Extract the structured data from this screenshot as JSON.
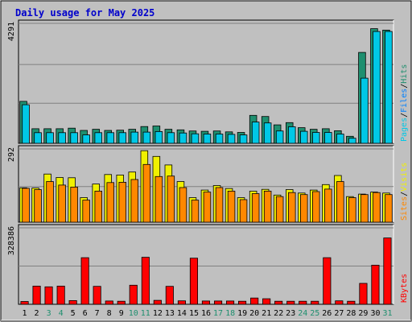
{
  "chart_data": {
    "type": "bar",
    "title": "Daily usage for May 2025",
    "categories": [
      "1",
      "2",
      "3",
      "4",
      "5",
      "6",
      "7",
      "8",
      "9",
      "10",
      "11",
      "12",
      "13",
      "14",
      "15",
      "16",
      "17",
      "18",
      "19",
      "20",
      "21",
      "22",
      "23",
      "24",
      "25",
      "26",
      "27",
      "28",
      "29",
      "30",
      "31"
    ],
    "weekend_days": [
      3,
      4,
      10,
      11,
      17,
      18,
      24,
      25,
      31
    ],
    "colors": {
      "hits": "#1f8f6f",
      "files": "#00c8e6",
      "pages": "#00c8e6",
      "visits": "#f0f000",
      "sites": "#ff8800",
      "kbytes": "#ff0000",
      "plot_background": "#c0c0c0",
      "title": "#0000cc",
      "weekend_label": "#1f8f6f",
      "weekday_label": "#000000"
    },
    "panels": [
      {
        "id": "hits",
        "axis_max_label": "4291",
        "ymax": 4291,
        "legend": [
          {
            "text": "Pages",
            "color": "#00c8e6"
          },
          {
            "text": "/",
            "color": "#000000"
          },
          {
            "text": "Files",
            "color": "#0080ff"
          },
          {
            "text": "/",
            "color": "#000000"
          },
          {
            "text": "Hits",
            "color": "#1f8f6f"
          }
        ],
        "series": [
          {
            "name": "Hits",
            "values": [
              1500,
              520,
              520,
              520,
              540,
              460,
              500,
              460,
              470,
              500,
              600,
              620,
              500,
              480,
              440,
              430,
              440,
              410,
              390,
              1000,
              960,
              660,
              740,
              560,
              500,
              520,
              450,
              250,
              3250,
              4100,
              4050
            ]
          },
          {
            "name": "Files",
            "values": [
              1380,
              380,
              380,
              380,
              380,
              300,
              380,
              380,
              380,
              400,
              400,
              420,
              380,
              370,
              340,
              330,
              330,
              320,
              300,
              760,
              730,
              440,
              590,
              430,
              390,
              390,
              330,
              180,
              2330,
              4000,
              4000
            ]
          }
        ]
      },
      {
        "id": "visits",
        "axis_max_label": "292",
        "ymax": 292,
        "legend": [
          {
            "text": "Sites",
            "color": "#ff8800"
          },
          {
            "text": "/",
            "color": "#000000"
          },
          {
            "text": "Visits",
            "color": "#f0f000"
          }
        ],
        "series": [
          {
            "name": "Visits",
            "values": [
              137,
              136,
              192,
              178,
              177,
              98,
              152,
              190,
              188,
              200,
              285,
              262,
              228,
              162,
              98,
              128,
              146,
              134,
              98,
              124,
              131,
              108,
              130,
              116,
              128,
              150,
              186,
              102,
              112,
              120,
              116
            ]
          },
          {
            "name": "Sites",
            "values": [
              135,
              130,
              162,
              148,
              140,
              88,
              124,
              158,
              159,
              170,
              230,
              182,
              184,
              138,
              88,
              120,
              138,
              124,
              90,
              114,
              124,
              102,
              118,
              110,
              122,
              132,
              162,
              98,
              110,
              118,
              110
            ]
          }
        ]
      },
      {
        "id": "kbytes",
        "axis_max_label": "328386",
        "ymax": 328386,
        "legend": [
          {
            "text": "KBytes",
            "color": "#ff0000"
          }
        ],
        "series": [
          {
            "name": "KBytes",
            "values": [
              12000,
              78000,
              75000,
              78000,
              16000,
              200000,
              77000,
              14000,
              13000,
              82000,
              202000,
              17000,
              77000,
              15000,
              198000,
              14000,
              14000,
              14000,
              13000,
              27000,
              24000,
              13000,
              13000,
              13000,
              13000,
              200000,
              15000,
              13000,
              90000,
              168000,
              285000
            ]
          }
        ]
      }
    ]
  }
}
